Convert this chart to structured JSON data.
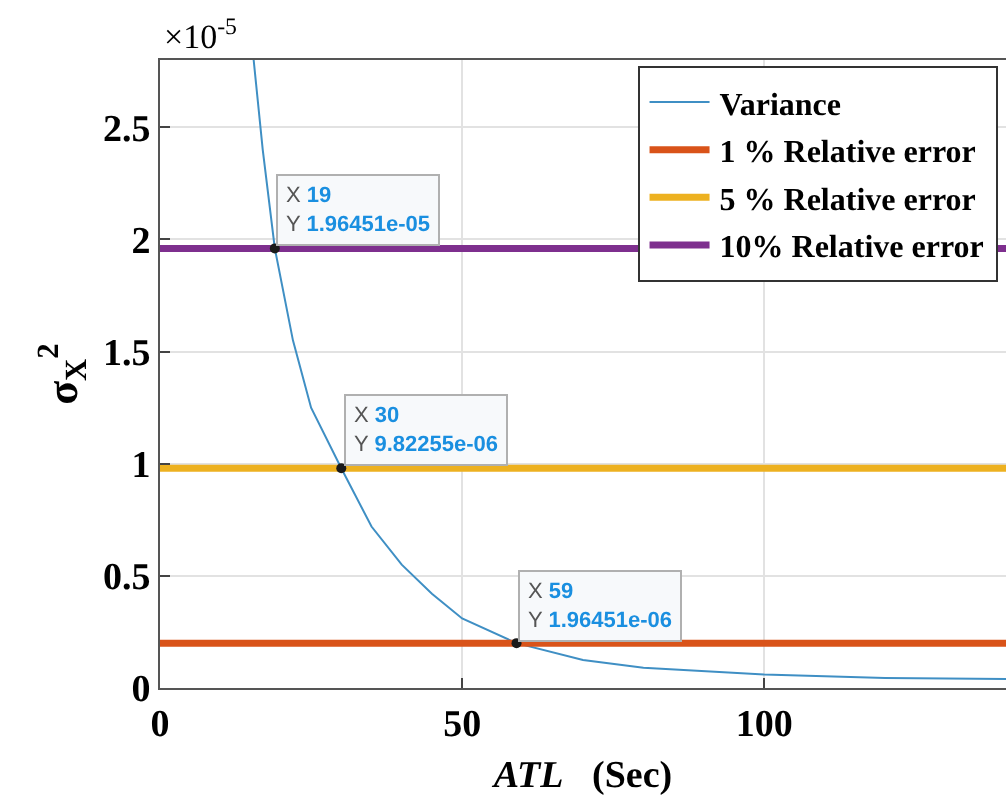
{
  "chart_data": {
    "type": "line",
    "xlabel": "ATL   (Sec)",
    "ylabel": "σ$_{X}$$^{2}$",
    "xlim": [
      0,
      140
    ],
    "xticks": [
      0,
      50,
      100
    ],
    "ylim": [
      0,
      2.8
    ],
    "yticks": [
      0,
      0.5,
      1,
      1.5,
      2,
      2.5
    ],
    "grid": true,
    "legend": "top right",
    "marker": "none",
    "line_style": "solid",
    "series": [
      {
        "name": "Variance",
        "color": "#3f8fc4",
        "x": [
          15.5,
          17,
          19,
          22,
          25,
          30,
          35,
          40,
          45,
          50,
          59,
          70,
          80,
          100,
          120,
          140
        ],
        "values": [
          2.8,
          2.4,
          1.96,
          1.55,
          1.25,
          0.98,
          0.72,
          0.55,
          0.42,
          0.31,
          0.2,
          0.125,
          0.09,
          0.06,
          0.045,
          0.04
        ]
      },
      {
        "name": "1 % Relative error",
        "color": "#d95319",
        "x": [
          0,
          140
        ],
        "values": [
          0.2,
          0.2
        ]
      },
      {
        "name": "5 % Relative error",
        "color": "#edb120",
        "x": [
          0,
          140
        ],
        "values": [
          0.98,
          0.98
        ]
      },
      {
        "name": "10% Relative error",
        "color": "#7e2f8e",
        "x": [
          0,
          140
        ],
        "values": [
          1.96,
          1.96
        ]
      }
    ],
    "annotations": [
      "×10$^{-5}$",
      {
        "text": "X 19\nY 1.96451e-05",
        "x": 19,
        "y": 1.96
      },
      {
        "text": "X 30\nY 9.82255e-06",
        "x": 30,
        "y": 0.98
      },
      {
        "text": "X 59\nY 1.96451e-06",
        "x": 59,
        "y": 0.2
      }
    ]
  }
}
